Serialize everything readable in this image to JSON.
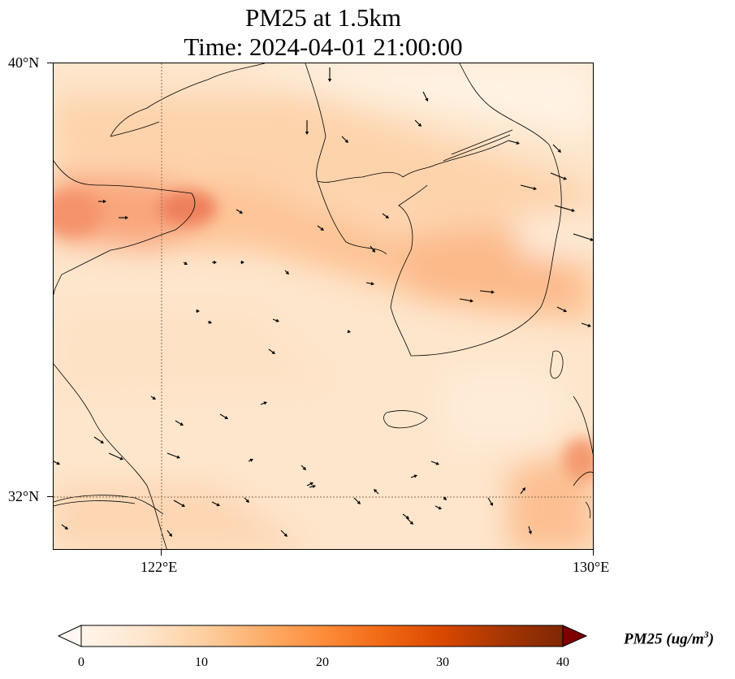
{
  "title": {
    "line1": "PM25 at 1.5km",
    "line2": "Time: 2024-04-01 21:00:00"
  },
  "map": {
    "lon_range": [
      120.4,
      130.0
    ],
    "lat_range": [
      31.0,
      40.0
    ],
    "lat_ticks": [
      {
        "label": "40°N",
        "value": 40
      },
      {
        "label": "32°N",
        "value": 32
      }
    ],
    "lon_ticks": [
      {
        "label": "122°E",
        "value": 122
      },
      {
        "label": "130°E",
        "value": 130
      }
    ],
    "gridline_style": "dotted",
    "field_variable": "PM25",
    "field_description": "concentration field shown as shaded colour, higher values in darker orange-red",
    "wind_arrows": "black quiver arrows indicating wind direction"
  },
  "colorbar": {
    "label_main": "PM25 (ug/m",
    "label_exp": "3",
    "label_close": ")",
    "ticks": [
      "0",
      "10",
      "20",
      "30",
      "40"
    ],
    "min": 0,
    "max": 40,
    "colormap": [
      "#fff5eb",
      "#fee6ce",
      "#fdd0a2",
      "#fdae6b",
      "#fd8d3c",
      "#f16913",
      "#d94801",
      "#a63603",
      "#7f2704"
    ],
    "extend": "both",
    "over_color": "#7f0000",
    "under_color": "#ffffff"
  }
}
